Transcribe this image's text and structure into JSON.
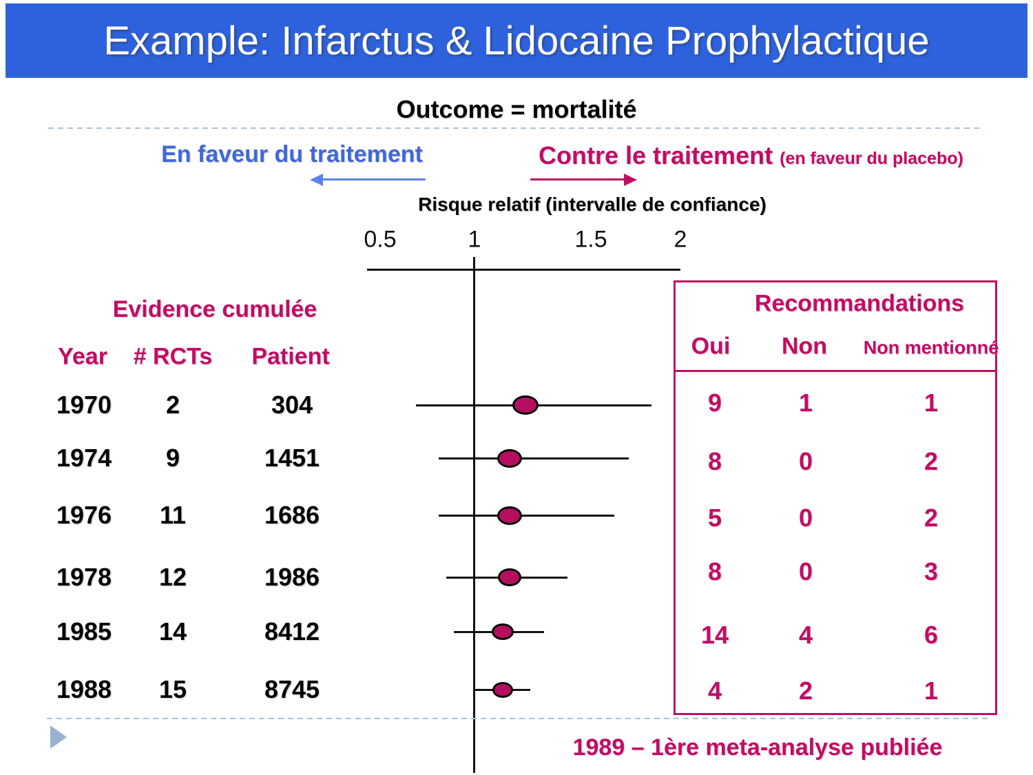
{
  "slide": {
    "title": "Example: Infarctus & Lidocaine Prophylactique",
    "subtitle": "Outcome = mortalité",
    "direction_labels": {
      "favor_treatment": "En faveur du traitement",
      "against_treatment": "Contre le traitement",
      "against_treatment_note": "(en faveur du placebo)"
    },
    "footnote": "1989 – 1ère meta-analyse publiée"
  },
  "evidence_table": {
    "title": "Evidence cumulée",
    "headers": [
      "Year",
      "# RCTs",
      "Patient"
    ],
    "rows": [
      {
        "year": "1970",
        "rcts": "2",
        "patients": "304"
      },
      {
        "year": "1974",
        "rcts": "9",
        "patients": "1451"
      },
      {
        "year": "1976",
        "rcts": "11",
        "patients": "1686"
      },
      {
        "year": "1978",
        "rcts": "12",
        "patients": "1986"
      },
      {
        "year": "1985",
        "rcts": "14",
        "patients": "8412"
      },
      {
        "year": "1988",
        "rcts": "15",
        "patients": "8745"
      }
    ]
  },
  "recommendations_table": {
    "title": "Recommandations",
    "headers": [
      "Oui",
      "Non",
      "Non mentionné"
    ],
    "rows": [
      [
        "9",
        "1",
        "1"
      ],
      [
        "8",
        "0",
        "2"
      ],
      [
        "5",
        "0",
        "2"
      ],
      [
        "8",
        "0",
        "3"
      ],
      [
        "14",
        "4",
        "6"
      ],
      [
        "4",
        "2",
        "1"
      ]
    ]
  },
  "chart_data": {
    "type": "forest",
    "title": "Risque relatif (intervalle de confiance)",
    "x_ticks": [
      0.5,
      1,
      1.5,
      2
    ],
    "x_tick_labels": [
      "0.5",
      "1",
      "1.5",
      "2"
    ],
    "reference_line_x": 1,
    "studies": [
      {
        "year": "1970",
        "rr": 1.22,
        "ci_low": 0.69,
        "ci_high": 1.84
      },
      {
        "year": "1974",
        "rr": 1.15,
        "ci_low": 0.81,
        "ci_high": 1.71
      },
      {
        "year": "1976",
        "rr": 1.15,
        "ci_low": 0.81,
        "ci_high": 1.63
      },
      {
        "year": "1978",
        "rr": 1.15,
        "ci_low": 0.85,
        "ci_high": 1.4
      },
      {
        "year": "1985",
        "rr": 1.12,
        "ci_low": 0.89,
        "ci_high": 1.3
      },
      {
        "year": "1988",
        "rr": 1.12,
        "ci_low": 1.0,
        "ci_high": 1.24
      }
    ]
  },
  "colors": {
    "header_bar": "#2E62DC",
    "magenta": "#C00D63",
    "marker_fill": "#B60F60",
    "blue_text": "#3D68DA",
    "blue_arrow": "#5C82EC",
    "dashed_line": "#A9C2DA",
    "triangle": "#9AB2CE"
  }
}
